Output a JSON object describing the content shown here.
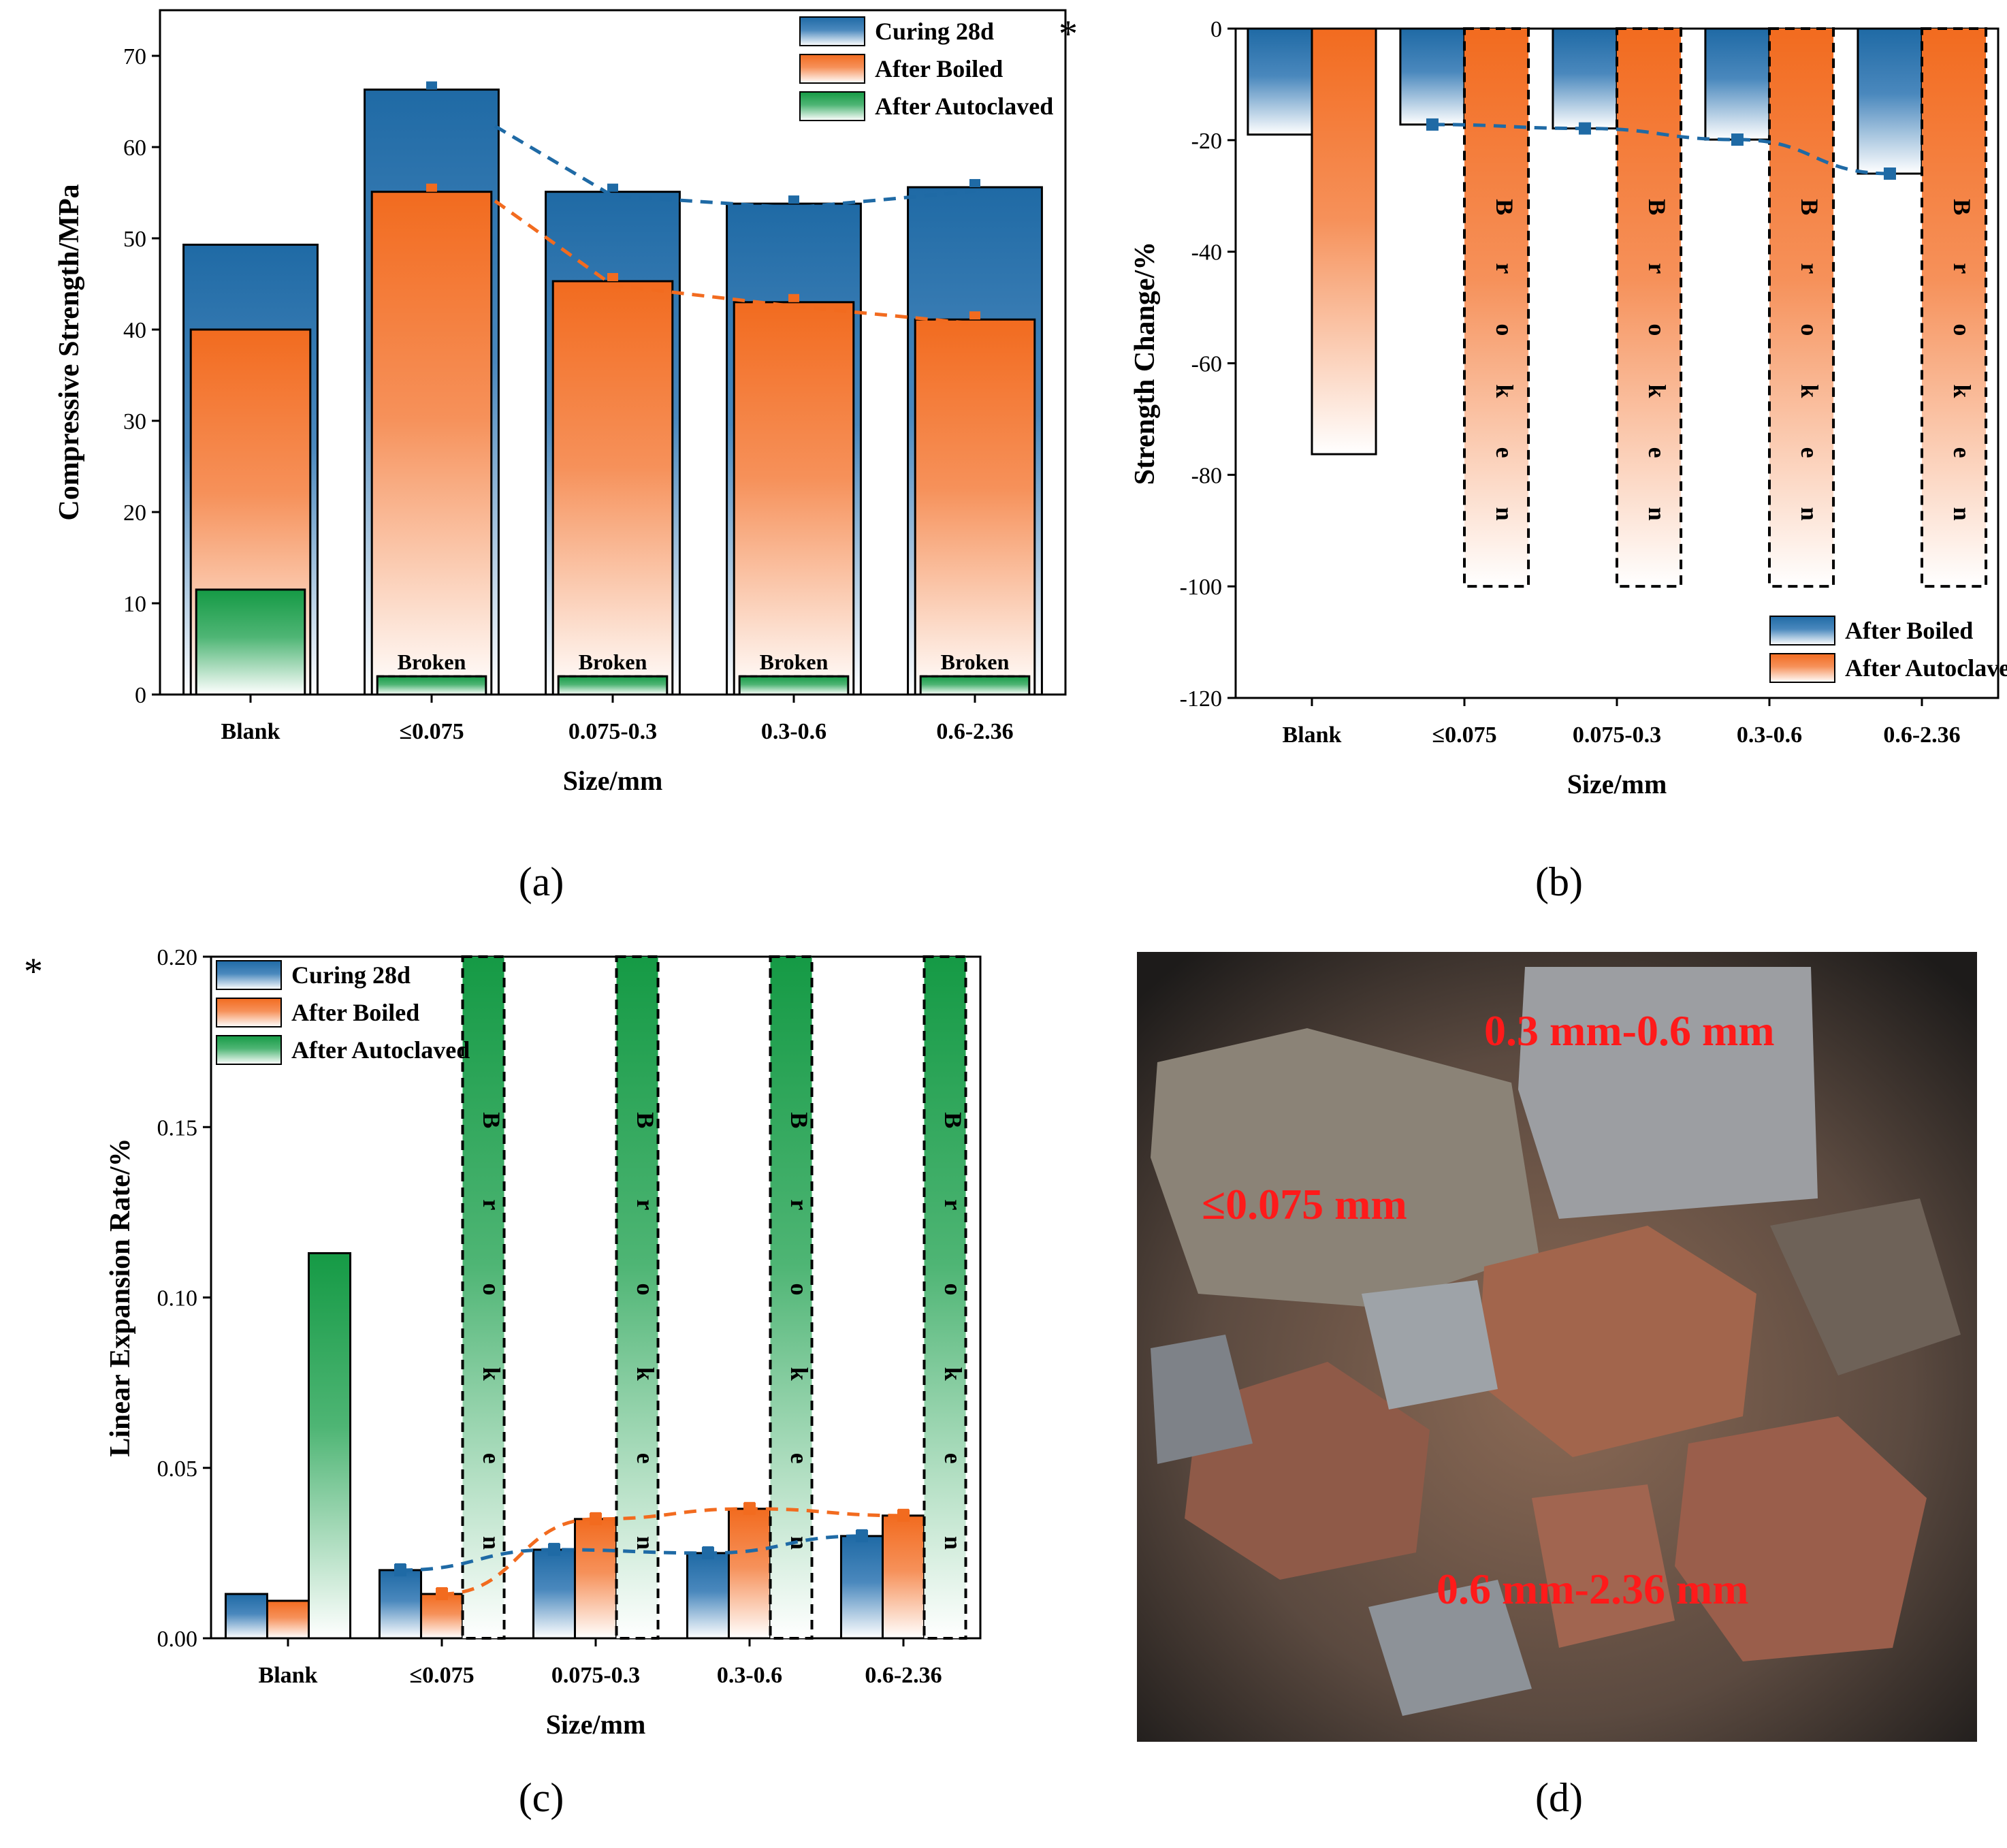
{
  "colors": {
    "curing": "#1f6aa5",
    "boiled": "#f26b1f",
    "autoclaved": "#159a45",
    "broken_label": "#000000",
    "photo_label": "#ff1a1a"
  },
  "chart_data": [
    {
      "id": "a",
      "type": "bar",
      "panel_label": "(a)",
      "title": "",
      "xlabel": "Size/mm",
      "ylabel": "Compressive Strength/MPa",
      "ylim": [
        0,
        75
      ],
      "yticks": [
        0,
        10,
        20,
        30,
        40,
        50,
        60,
        70
      ],
      "categories": [
        "Blank",
        "≤0.075",
        "0.075-0.3",
        "0.3-0.6",
        "0.6-2.36"
      ],
      "series": [
        {
          "name": "Curing 28d",
          "color_key": "curing",
          "values": [
            49.3,
            66.3,
            55.1,
            53.8,
            55.6
          ]
        },
        {
          "name": "After Boiled",
          "color_key": "boiled",
          "values": [
            40.0,
            55.1,
            45.3,
            43.0,
            41.1
          ]
        },
        {
          "name": "After Autoclaved",
          "color_key": "autoclaved",
          "values": [
            11.5,
            null,
            null,
            null,
            null
          ]
        }
      ],
      "broken_text": "Broken",
      "legend": [
        "Curing 28d",
        "After Boiled",
        "After Autoclaved"
      ],
      "legend_position": "top-right"
    },
    {
      "id": "b",
      "type": "bar",
      "panel_label": "(b)",
      "asterisk": "*",
      "xlabel": "Size/mm",
      "ylabel": "Strength Change/%",
      "ylim": [
        -120,
        0
      ],
      "yticks": [
        0,
        -20,
        -40,
        -60,
        -80,
        -100,
        -120
      ],
      "categories": [
        "Blank",
        "≤0.075",
        "0.075-0.3",
        "0.3-0.6",
        "0.6-2.36"
      ],
      "series": [
        {
          "name": "After Boiled",
          "color_key": "curing",
          "values": [
            -19.0,
            -17.2,
            -17.9,
            -19.9,
            -26.0
          ]
        },
        {
          "name": "After Autoclaved",
          "color_key": "boiled",
          "values": [
            -76.3,
            null,
            null,
            null,
            null
          ]
        }
      ],
      "broken_text": "Broken",
      "legend": [
        "After Boiled",
        "After Autoclaved"
      ],
      "legend_position": "bottom-right"
    },
    {
      "id": "c",
      "type": "bar",
      "panel_label": "(c)",
      "asterisk": "*",
      "xlabel": "Size/mm",
      "ylabel": "Linear Expansion Rate/%",
      "ylim": [
        0,
        0.2
      ],
      "yticks": [
        "0.00",
        "0.05",
        "0.10",
        "0.15",
        "0.20"
      ],
      "categories": [
        "Blank",
        "≤0.075",
        "0.075-0.3",
        "0.3-0.6",
        "0.6-2.36"
      ],
      "series": [
        {
          "name": "Curing 28d",
          "color_key": "curing",
          "values": [
            0.013,
            0.02,
            0.026,
            0.025,
            0.03
          ]
        },
        {
          "name": "After Boiled",
          "color_key": "boiled",
          "values": [
            0.011,
            0.013,
            0.035,
            0.038,
            0.036
          ]
        },
        {
          "name": "After Autoclaved",
          "color_key": "autoclaved",
          "values": [
            0.113,
            null,
            null,
            null,
            null
          ]
        }
      ],
      "broken_text": "Broken",
      "legend": [
        "Curing 28d",
        "After Boiled",
        "After Autoclaved"
      ],
      "legend_position": "top-left"
    }
  ],
  "photo": {
    "panel_label": "(d)",
    "labels": [
      "0.3 mm-0.6 mm",
      "≤0.075 mm",
      "0.6 mm-2.36 mm"
    ]
  }
}
